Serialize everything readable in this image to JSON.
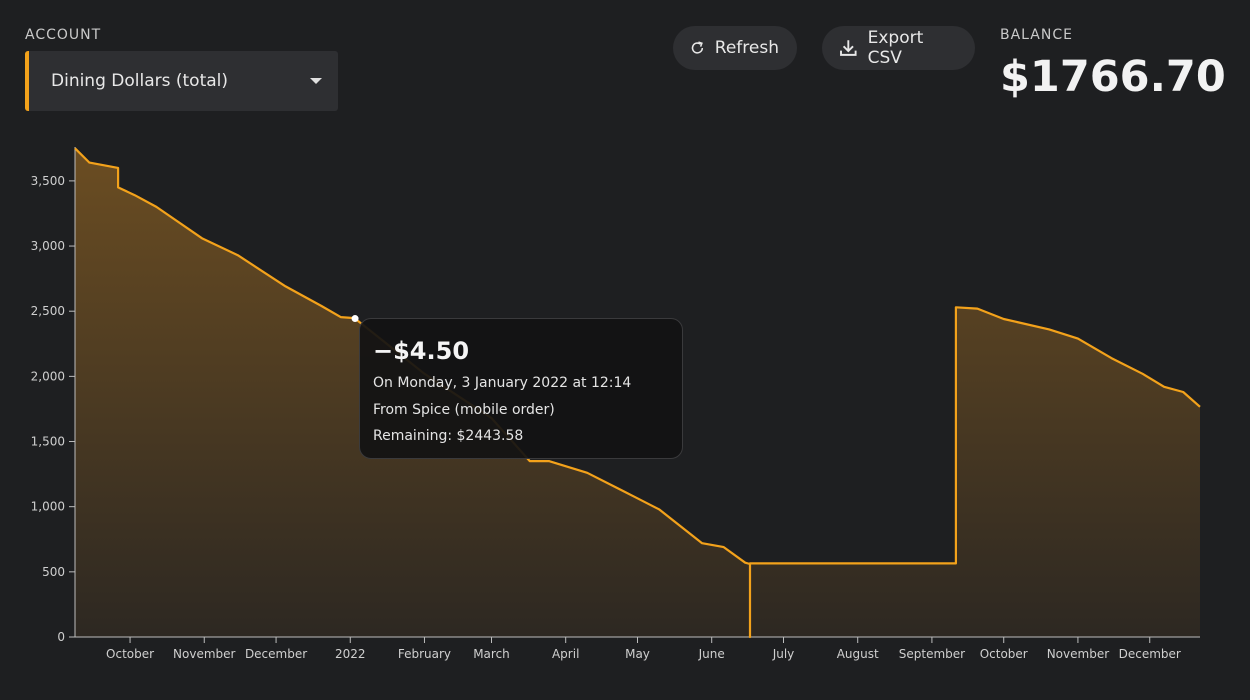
{
  "account": {
    "label": "ACCOUNT",
    "selected": "Dining Dollars (total)"
  },
  "toolbar": {
    "refresh_label": "Refresh",
    "export_label": "Export CSV"
  },
  "balance": {
    "label": "BALANCE",
    "value": "$1766.70"
  },
  "tooltip": {
    "amount": "−$4.50",
    "line1": "On Monday, 3 January 2022 at 12:14",
    "line2": "From Spice (mobile order)",
    "line3": "Remaining: $2443.58"
  },
  "colors": {
    "accent": "#f3a21b",
    "background": "#1e1f21",
    "panel": "#2e2f32"
  },
  "chart_data": {
    "type": "area",
    "x_unit": "date",
    "y_ticks": [
      0,
      500,
      1000,
      1500,
      2000,
      2500,
      3000,
      3500
    ],
    "y_tick_labels": [
      "0",
      "500",
      "1,000",
      "1,500",
      "2,000",
      "2,500",
      "3,000",
      "3,500"
    ],
    "ylim": [
      0,
      3760
    ],
    "xlim": [
      "2021-09-08",
      "2022-12-22"
    ],
    "x_ticks": [
      {
        "date": "2021-10-01",
        "label": "October"
      },
      {
        "date": "2021-11-01",
        "label": "November"
      },
      {
        "date": "2021-12-01",
        "label": "December"
      },
      {
        "date": "2022-01-01",
        "label": "2022"
      },
      {
        "date": "2022-02-01",
        "label": "February"
      },
      {
        "date": "2022-03-01",
        "label": "March"
      },
      {
        "date": "2022-04-01",
        "label": "April"
      },
      {
        "date": "2022-05-01",
        "label": "May"
      },
      {
        "date": "2022-06-01",
        "label": "June"
      },
      {
        "date": "2022-07-01",
        "label": "July"
      },
      {
        "date": "2022-08-01",
        "label": "August"
      },
      {
        "date": "2022-09-01",
        "label": "September"
      },
      {
        "date": "2022-10-01",
        "label": "October"
      },
      {
        "date": "2022-11-01",
        "label": "November"
      },
      {
        "date": "2022-12-01",
        "label": "December"
      }
    ],
    "points": [
      {
        "date": "2021-09-08",
        "balance": 3750
      },
      {
        "date": "2021-09-14",
        "balance": 3640
      },
      {
        "date": "2021-09-26",
        "balance": 3600
      },
      {
        "date": "2021-09-26",
        "balance": 3450
      },
      {
        "date": "2021-10-03",
        "balance": 3390
      },
      {
        "date": "2021-10-12",
        "balance": 3300
      },
      {
        "date": "2021-10-31",
        "balance": 3060
      },
      {
        "date": "2021-11-15",
        "balance": 2930
      },
      {
        "date": "2021-12-05",
        "balance": 2690
      },
      {
        "date": "2021-12-20",
        "balance": 2540
      },
      {
        "date": "2021-12-28",
        "balance": 2455
      },
      {
        "date": "2022-01-02",
        "balance": 2448
      },
      {
        "date": "2022-01-03",
        "balance": 2443.58
      },
      {
        "date": "2022-02-01",
        "balance": 2020
      },
      {
        "date": "2022-03-01",
        "balance": 1680
      },
      {
        "date": "2022-03-17",
        "balance": 1350
      },
      {
        "date": "2022-03-25",
        "balance": 1350
      },
      {
        "date": "2022-04-10",
        "balance": 1260
      },
      {
        "date": "2022-04-25",
        "balance": 1120
      },
      {
        "date": "2022-05-10",
        "balance": 980
      },
      {
        "date": "2022-05-28",
        "balance": 720
      },
      {
        "date": "2022-06-06",
        "balance": 690
      },
      {
        "date": "2022-06-15",
        "balance": 570
      },
      {
        "date": "2022-06-17",
        "balance": 560
      },
      {
        "date": "2022-06-17",
        "balance": 0
      },
      {
        "date": "2022-06-17",
        "balance": 565
      },
      {
        "date": "2022-09-11",
        "balance": 565
      },
      {
        "date": "2022-09-11",
        "balance": 2530
      },
      {
        "date": "2022-09-20",
        "balance": 2520
      },
      {
        "date": "2022-10-01",
        "balance": 2440
      },
      {
        "date": "2022-10-20",
        "balance": 2360
      },
      {
        "date": "2022-11-01",
        "balance": 2290
      },
      {
        "date": "2022-11-15",
        "balance": 2140
      },
      {
        "date": "2022-11-28",
        "balance": 2020
      },
      {
        "date": "2022-12-07",
        "balance": 1920
      },
      {
        "date": "2022-12-15",
        "balance": 1880
      },
      {
        "date": "2022-12-22",
        "balance": 1766.7
      }
    ],
    "highlight": {
      "date": "2022-01-03",
      "balance": 2443.58
    },
    "color": "#f3a21b"
  }
}
